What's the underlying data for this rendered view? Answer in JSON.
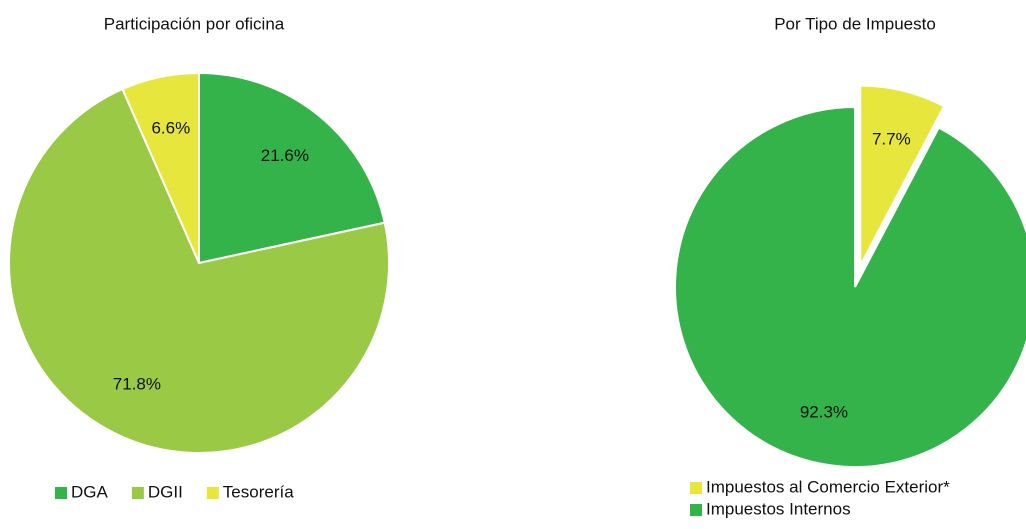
{
  "chart_data": [
    {
      "type": "pie",
      "title": "Participación por oficina",
      "categories": [
        "DGA",
        "DGII",
        "Tesorería"
      ],
      "values": [
        21.6,
        71.8,
        6.6
      ],
      "value_labels": [
        "21.6%",
        "71.8%",
        "6.6%"
      ],
      "colors": [
        "#33b34a",
        "#99c945",
        "#e6e63c"
      ],
      "explode": [
        false,
        false,
        false
      ]
    },
    {
      "type": "pie",
      "title": "Por Tipo de Impuesto",
      "categories": [
        "Impuestos al Comercio Exterior*",
        "Impuestos Internos"
      ],
      "values": [
        7.7,
        92.3
      ],
      "value_labels": [
        "7.7%",
        "92.3%"
      ],
      "colors": [
        "#e6e63c",
        "#33b34a"
      ],
      "explode": [
        true,
        false
      ]
    }
  ]
}
